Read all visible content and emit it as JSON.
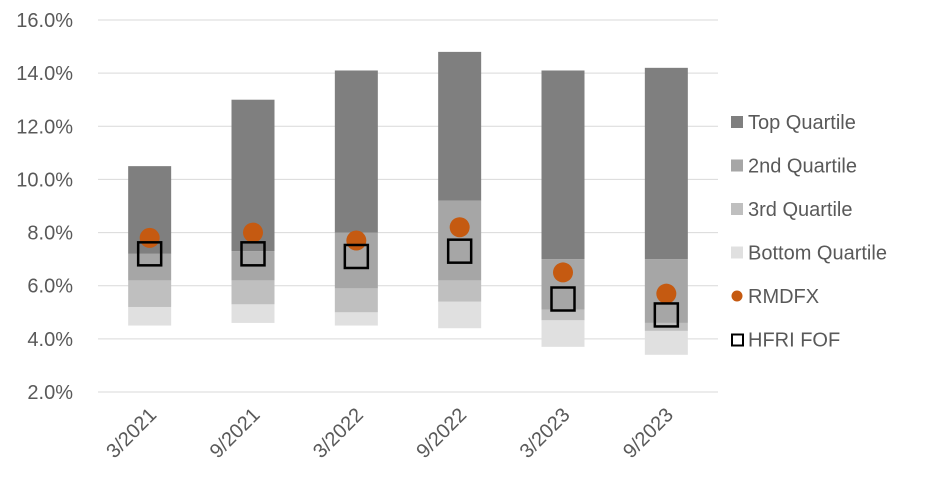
{
  "chart_data": {
    "type": "bar",
    "stacked": true,
    "title": "",
    "xlabel": "",
    "ylabel": "",
    "categories": [
      "3/2021",
      "9/2021",
      "3/2022",
      "9/2022",
      "3/2023",
      "9/2023"
    ],
    "y_ticks": [
      "2.0%",
      "4.0%",
      "6.0%",
      "8.0%",
      "10.0%",
      "12.0%",
      "14.0%",
      "16.0%"
    ],
    "ylim": [
      2.0,
      16.0
    ],
    "grid": true,
    "legend_position": "right",
    "quartile_ranges": [
      {
        "name": "Bottom Quartile",
        "color": "#e0e0e0",
        "low": [
          4.5,
          4.6,
          4.5,
          4.4,
          3.7,
          3.4
        ],
        "high": [
          5.2,
          5.3,
          5.0,
          5.4,
          4.7,
          4.3
        ]
      },
      {
        "name": "3rd Quartile",
        "color": "#bfbfbf",
        "low": [
          5.2,
          5.3,
          5.0,
          5.4,
          4.7,
          4.3
        ],
        "high": [
          6.2,
          6.2,
          5.9,
          6.2,
          5.1,
          4.6
        ]
      },
      {
        "name": "2nd Quartile",
        "color": "#a6a6a6",
        "low": [
          6.2,
          6.2,
          5.9,
          6.2,
          5.1,
          4.6
        ],
        "high": [
          7.2,
          7.3,
          8.0,
          9.2,
          7.0,
          7.0
        ]
      },
      {
        "name": "Top Quartile",
        "color": "#7f7f7f",
        "low": [
          7.2,
          7.3,
          8.0,
          9.2,
          7.0,
          7.0
        ],
        "high": [
          10.5,
          13.0,
          14.1,
          14.8,
          14.1,
          14.2
        ]
      }
    ],
    "markers": [
      {
        "name": "RMDFX",
        "shape": "circle",
        "color": "#c55a11",
        "values": [
          7.8,
          8.0,
          7.7,
          8.2,
          6.5,
          5.7
        ]
      },
      {
        "name": "HFRI FOF",
        "shape": "square",
        "color": "#000000",
        "values": [
          7.2,
          7.2,
          7.1,
          7.3,
          5.5,
          4.9
        ]
      }
    ],
    "legend": [
      "Top Quartile",
      "2nd Quartile",
      "3rd Quartile",
      "Bottom Quartile",
      "RMDFX",
      "HFRI FOF"
    ]
  }
}
